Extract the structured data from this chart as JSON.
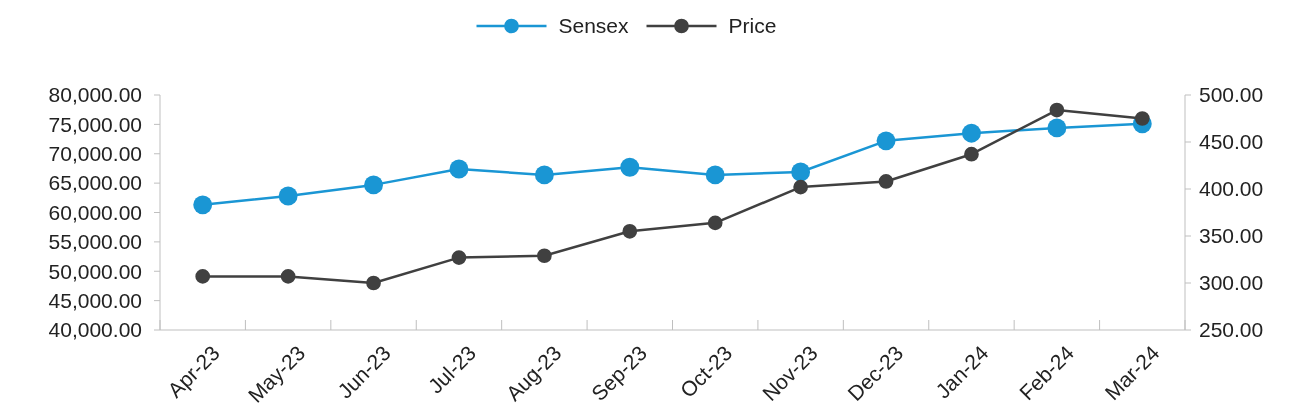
{
  "chart_data": {
    "type": "line",
    "categories": [
      "Apr-23",
      "May-23",
      "Jun-23",
      "Jul-23",
      "Aug-23",
      "Sep-23",
      "Oct-23",
      "Nov-23",
      "Dec-23",
      "Jan-24",
      "Feb-24",
      "Mar-24"
    ],
    "series": [
      {
        "name": "Sensex",
        "color": "#1a96d4",
        "values": [
          61300,
          62800,
          64700,
          67400,
          66400,
          67700,
          66400,
          66900,
          72200,
          73500,
          74400,
          75100
        ]
      },
      {
        "name": "Price",
        "color": "#404040",
        "axis": "y2",
        "values": [
          307,
          307,
          300,
          327,
          329,
          355,
          364,
          402,
          408,
          437,
          484,
          475
        ]
      }
    ],
    "ylim": [
      40000,
      80000
    ],
    "yticks": [
      {
        "value": 40000,
        "label": "40,000.00"
      },
      {
        "value": 45000,
        "label": "45,000.00"
      },
      {
        "value": 50000,
        "label": "50,000.00"
      },
      {
        "value": 55000,
        "label": "55,000.00"
      },
      {
        "value": 60000,
        "label": "60,000.00"
      },
      {
        "value": 65000,
        "label": "65,000.00"
      },
      {
        "value": 70000,
        "label": "70,000.00"
      },
      {
        "value": 75000,
        "label": "75,000.00"
      },
      {
        "value": 80000,
        "label": "80,000.00"
      }
    ],
    "y2lim": [
      250,
      500
    ],
    "y2ticks": [
      {
        "value": 250,
        "label": "250.00"
      },
      {
        "value": 300,
        "label": "300.00"
      },
      {
        "value": 350,
        "label": "350.00"
      },
      {
        "value": 400,
        "label": "400.00"
      },
      {
        "value": 450,
        "label": "450.00"
      },
      {
        "value": 500,
        "label": "500.00"
      }
    ],
    "grid": false,
    "legend": "top",
    "marker": "circle",
    "line_style": "solid"
  }
}
